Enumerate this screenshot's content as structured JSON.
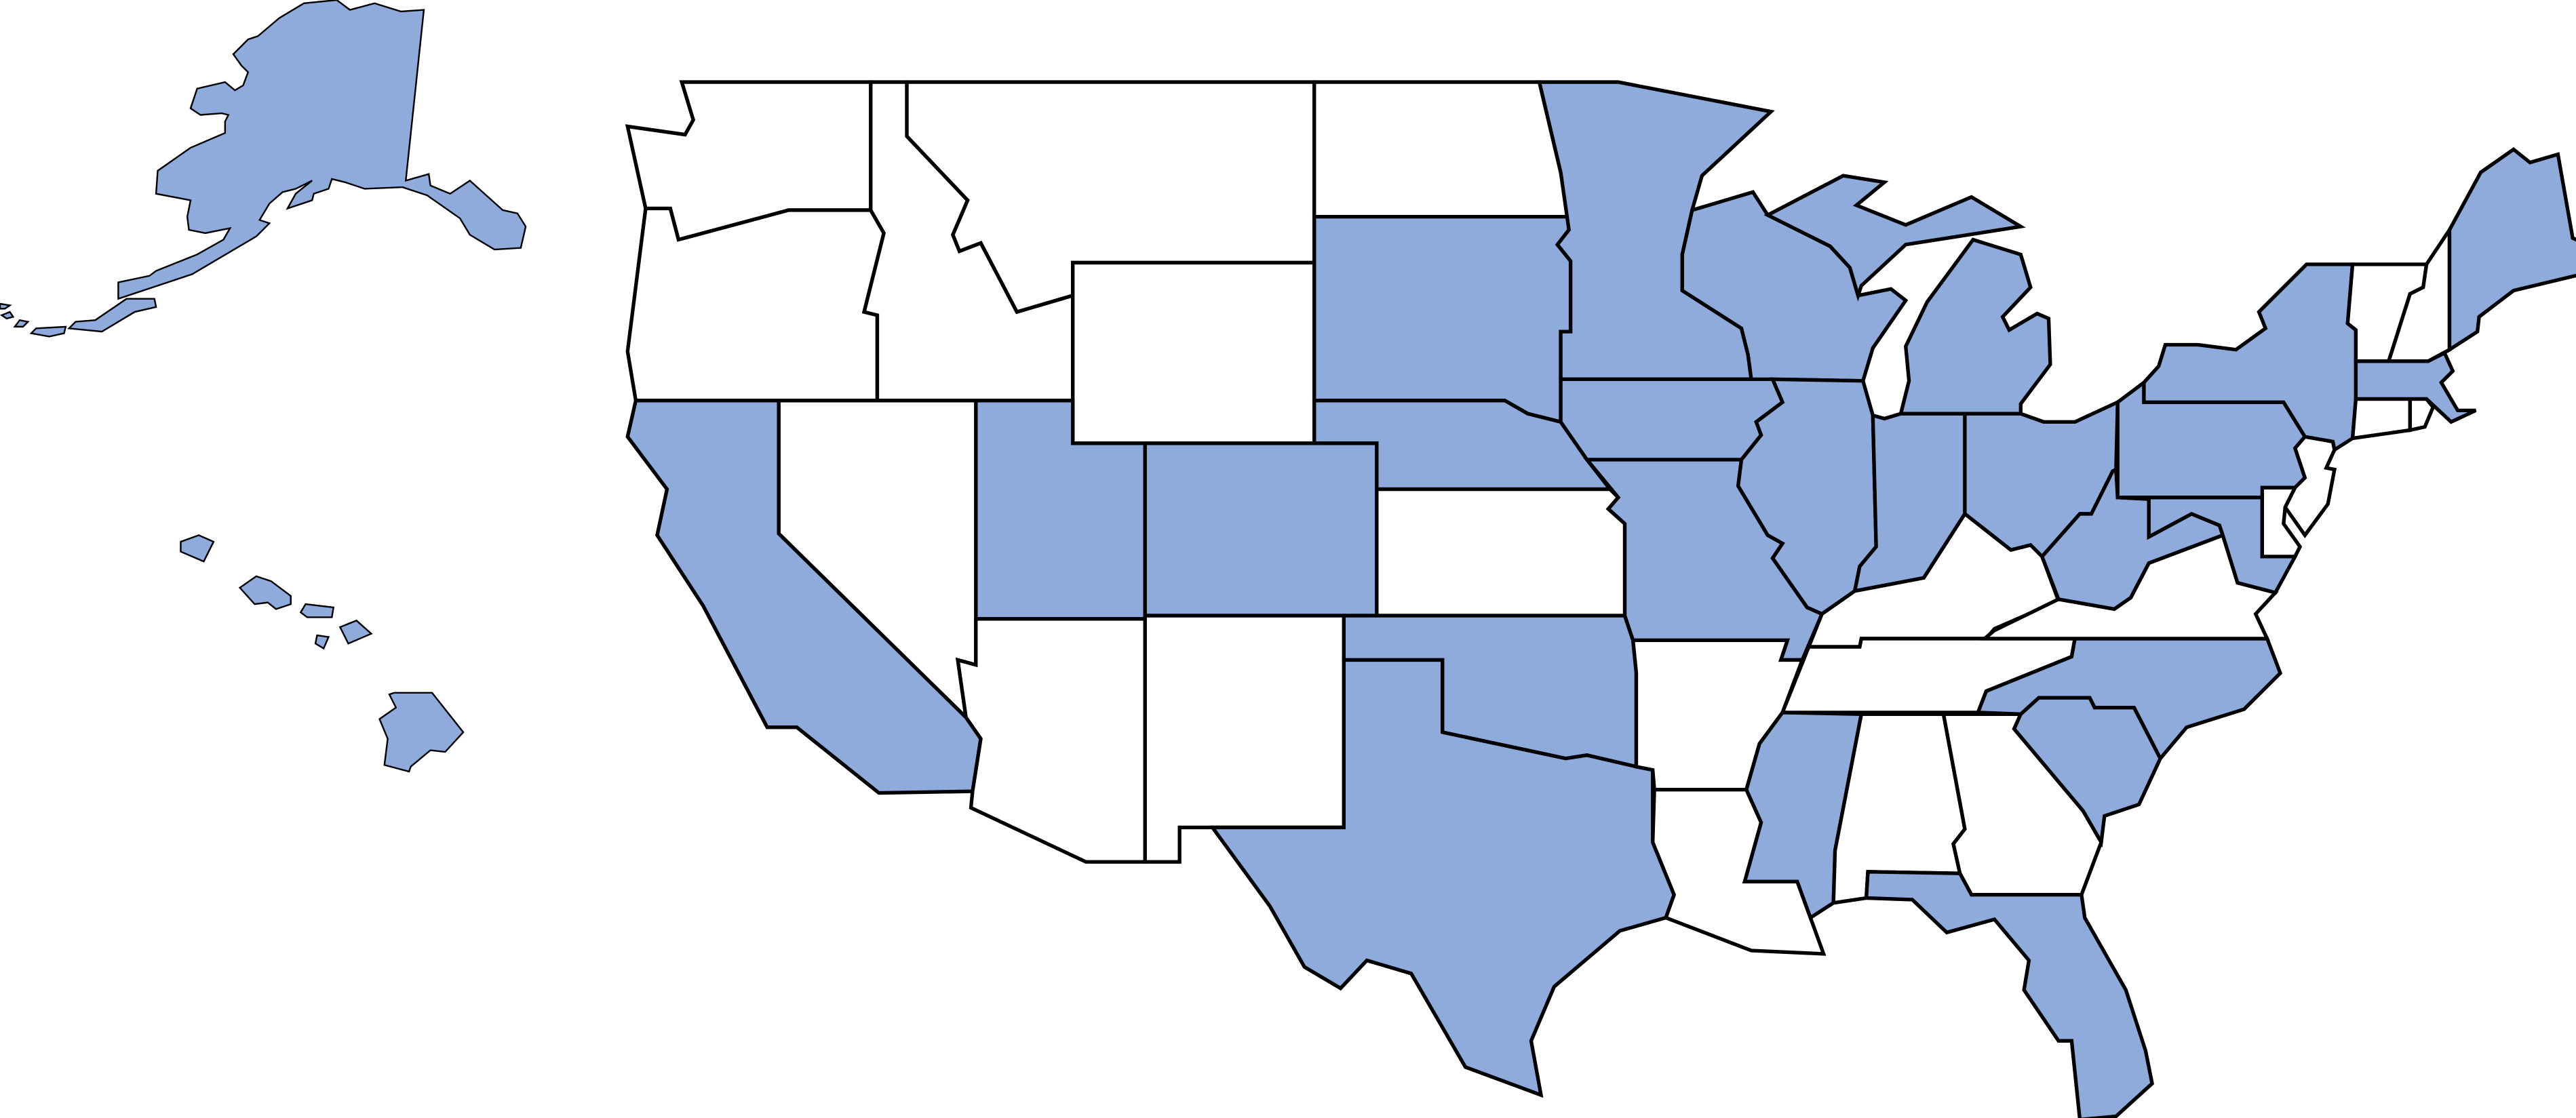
{
  "map": {
    "highlight_color": "#8eabdc",
    "default_color": "#ffffff",
    "outline_color": "#000000",
    "highlighted_states": [
      "alaska",
      "hawaii",
      "california",
      "utah",
      "colorado",
      "south-dakota",
      "nebraska",
      "oklahoma",
      "texas",
      "minnesota",
      "iowa",
      "missouri",
      "wisconsin",
      "michigan",
      "illinois",
      "indiana",
      "ohio",
      "mississippi",
      "florida",
      "south-carolina",
      "north-carolina",
      "west-virginia",
      "maryland",
      "pennsylvania",
      "new-york",
      "massachusetts",
      "maine"
    ],
    "unhighlighted_states": [
      "washington",
      "oregon",
      "idaho",
      "montana",
      "wyoming",
      "north-dakota",
      "nevada",
      "arizona",
      "new-mexico",
      "kansas",
      "arkansas",
      "louisiana",
      "tennessee",
      "kentucky",
      "alabama",
      "georgia",
      "virginia",
      "delaware",
      "new-jersey",
      "connecticut",
      "rhode-island",
      "vermont",
      "new-hampshire"
    ]
  }
}
